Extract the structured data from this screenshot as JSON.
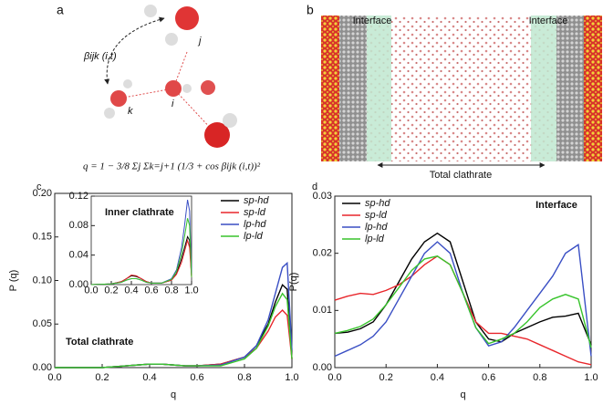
{
  "panel_a": {
    "label": "a",
    "angle_label": "βijk (i,t)",
    "atom_j": "j",
    "atom_k": "k",
    "atom_i": "i",
    "formula": "q = 1 − 3/8 Σj Σk=j+1 (1/3 + cos βijk (i,t))²"
  },
  "panel_b": {
    "label": "b",
    "interface_left": "Interface",
    "interface_right": "Interface",
    "total": "Total clathrate"
  },
  "chart_data": [
    {
      "type": "line",
      "panel_label": "c",
      "xlabel": "q",
      "ylabel": "P (q)",
      "annotation": "Total clathrate",
      "legend": "upper right",
      "xlim": [
        0,
        1.0
      ],
      "ylim": [
        0,
        0.2
      ],
      "xticks": [
        {
          "value": 0,
          "label": "0.0"
        },
        {
          "value": 0.2,
          "label": "0.2"
        },
        {
          "value": 0.4,
          "label": "0.4"
        },
        {
          "value": 0.6,
          "label": "0.6"
        },
        {
          "value": 0.8,
          "label": "0.8"
        },
        {
          "value": 1.0,
          "label": "1.0"
        }
      ],
      "yticks": [
        {
          "value": 0,
          "label": "0.00"
        },
        {
          "value": 0.05,
          "label": "0.05"
        },
        {
          "value": 0.1,
          "label": "0.10"
        },
        {
          "value": 0.15,
          "label": "0.15"
        },
        {
          "value": 0.2,
          "label": "0.20"
        }
      ],
      "x": [
        0,
        0.1,
        0.2,
        0.3,
        0.35,
        0.4,
        0.45,
        0.5,
        0.55,
        0.6,
        0.7,
        0.8,
        0.85,
        0.9,
        0.93,
        0.96,
        0.98,
        1.0
      ],
      "series": [
        {
          "name": "sp-hd",
          "color": "#000000",
          "values": [
            0,
            0,
            0,
            0.002,
            0.003,
            0.004,
            0.004,
            0.003,
            0.002,
            0.002,
            0.004,
            0.012,
            0.025,
            0.05,
            0.075,
            0.095,
            0.09,
            0.01
          ]
        },
        {
          "name": "sp-ld",
          "color": "#e8262b",
          "values": [
            0,
            0,
            0,
            0.002,
            0.003,
            0.004,
            0.004,
            0.003,
            0.002,
            0.002,
            0.004,
            0.012,
            0.022,
            0.042,
            0.058,
            0.066,
            0.06,
            0.01
          ]
        },
        {
          "name": "lp-hd",
          "color": "#3a4fc4",
          "values": [
            0,
            0,
            0,
            0.002,
            0.003,
            0.004,
            0.004,
            0.003,
            0.002,
            0.002,
            0.003,
            0.012,
            0.025,
            0.055,
            0.085,
            0.115,
            0.12,
            0.02
          ]
        },
        {
          "name": "lp-ld",
          "color": "#38c42c",
          "values": [
            0,
            0,
            0,
            0.002,
            0.003,
            0.004,
            0.004,
            0.003,
            0.002,
            0.002,
            0.002,
            0.01,
            0.022,
            0.048,
            0.07,
            0.085,
            0.078,
            0.01
          ]
        }
      ]
    },
    {
      "type": "line",
      "title": "Inner clathrate",
      "xlim": [
        0,
        1.0
      ],
      "ylim": [
        0,
        0.12
      ],
      "xticks": [
        {
          "value": 0,
          "label": "0.0"
        },
        {
          "value": 0.2,
          "label": "0.2"
        },
        {
          "value": 0.4,
          "label": "0.4"
        },
        {
          "value": 0.6,
          "label": "0.6"
        },
        {
          "value": 0.8,
          "label": "0.8"
        },
        {
          "value": 1.0,
          "label": "1.0"
        }
      ],
      "yticks": [
        {
          "value": 0,
          "label": "0.00"
        },
        {
          "value": 0.04,
          "label": "0.04"
        },
        {
          "value": 0.08,
          "label": "0.08"
        },
        {
          "value": 0.12,
          "label": "0.12"
        }
      ],
      "x": [
        0,
        0.2,
        0.3,
        0.35,
        0.4,
        0.45,
        0.5,
        0.55,
        0.6,
        0.7,
        0.8,
        0.85,
        0.9,
        0.93,
        0.96,
        0.98,
        1.0
      ],
      "series": [
        {
          "name": "sp-hd",
          "color": "#000000",
          "values": [
            0,
            0.001,
            0.004,
            0.008,
            0.012,
            0.011,
            0.008,
            0.004,
            0.002,
            0.002,
            0.006,
            0.015,
            0.035,
            0.05,
            0.065,
            0.06,
            0.01
          ]
        },
        {
          "name": "sp-ld",
          "color": "#e8262b",
          "values": [
            0,
            0.001,
            0.004,
            0.008,
            0.013,
            0.012,
            0.008,
            0.004,
            0.002,
            0.002,
            0.006,
            0.014,
            0.03,
            0.045,
            0.06,
            0.05,
            0.01
          ]
        },
        {
          "name": "lp-hd",
          "color": "#3a4fc4",
          "values": [
            0,
            0.001,
            0.003,
            0.006,
            0.008,
            0.008,
            0.006,
            0.003,
            0.002,
            0.002,
            0.008,
            0.02,
            0.05,
            0.08,
            0.115,
            0.1,
            0.015
          ]
        },
        {
          "name": "lp-ld",
          "color": "#38c42c",
          "values": [
            0,
            0.001,
            0.003,
            0.006,
            0.008,
            0.008,
            0.006,
            0.003,
            0.002,
            0.002,
            0.007,
            0.018,
            0.042,
            0.065,
            0.09,
            0.08,
            0.01
          ]
        }
      ]
    },
    {
      "type": "line",
      "panel_label": "d",
      "xlabel": "q",
      "ylabel": "P(q)",
      "annotation": "Interface",
      "legend": "upper left",
      "xlim": [
        0,
        1.0
      ],
      "ylim": [
        0,
        0.03
      ],
      "xticks": [
        {
          "value": 0,
          "label": "0.0"
        },
        {
          "value": 0.2,
          "label": "0.2"
        },
        {
          "value": 0.4,
          "label": "0.4"
        },
        {
          "value": 0.6,
          "label": "0.6"
        },
        {
          "value": 0.8,
          "label": "0.8"
        },
        {
          "value": 1.0,
          "label": "1.0"
        }
      ],
      "yticks": [
        {
          "value": 0,
          "label": "0.00"
        },
        {
          "value": 0.01,
          "label": "0.01"
        },
        {
          "value": 0.02,
          "label": "0.02"
        },
        {
          "value": 0.03,
          "label": "0.03"
        }
      ],
      "x": [
        0,
        0.05,
        0.1,
        0.15,
        0.2,
        0.25,
        0.3,
        0.35,
        0.4,
        0.45,
        0.5,
        0.55,
        0.6,
        0.65,
        0.7,
        0.75,
        0.8,
        0.85,
        0.9,
        0.95,
        1.0
      ],
      "series": [
        {
          "name": "sp-hd",
          "color": "#000000",
          "values": [
            0.006,
            0.0062,
            0.0068,
            0.008,
            0.011,
            0.015,
            0.019,
            0.022,
            0.0235,
            0.022,
            0.015,
            0.008,
            0.005,
            0.0045,
            0.006,
            0.007,
            0.008,
            0.0088,
            0.009,
            0.0095,
            0.004
          ]
        },
        {
          "name": "sp-ld",
          "color": "#e8262b",
          "values": [
            0.0118,
            0.0125,
            0.013,
            0.0128,
            0.0135,
            0.0145,
            0.016,
            0.018,
            0.0195,
            0.018,
            0.013,
            0.008,
            0.006,
            0.006,
            0.0055,
            0.005,
            0.004,
            0.003,
            0.002,
            0.001,
            0.0005
          ]
        },
        {
          "name": "lp-hd",
          "color": "#3a4fc4",
          "values": [
            0.002,
            0.003,
            0.004,
            0.0055,
            0.008,
            0.012,
            0.016,
            0.02,
            0.022,
            0.02,
            0.013,
            0.007,
            0.0038,
            0.0045,
            0.007,
            0.01,
            0.013,
            0.016,
            0.02,
            0.0215,
            0.002
          ]
        },
        {
          "name": "lp-ld",
          "color": "#38c42c",
          "values": [
            0.006,
            0.0065,
            0.0072,
            0.0085,
            0.011,
            0.014,
            0.017,
            0.019,
            0.0195,
            0.018,
            0.013,
            0.007,
            0.0042,
            0.005,
            0.006,
            0.008,
            0.0105,
            0.012,
            0.0128,
            0.012,
            0.0035
          ]
        }
      ]
    }
  ]
}
